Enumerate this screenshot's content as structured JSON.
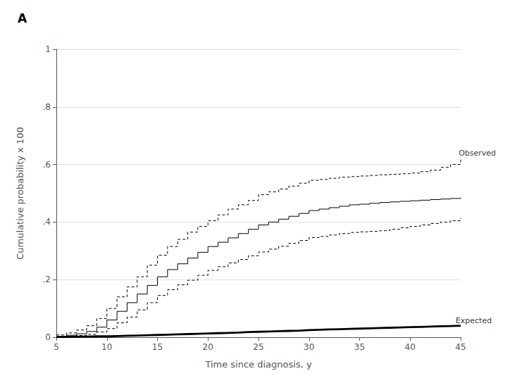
{
  "chart_data": {
    "type": "line",
    "title": "A",
    "xlabel": "Time since diagnosis, y",
    "ylabel": "Cumulative probability x 100",
    "x": [
      5,
      6,
      7,
      8,
      9,
      10,
      11,
      12,
      13,
      14,
      15,
      16,
      17,
      18,
      19,
      20,
      21,
      22,
      23,
      24,
      25,
      26,
      27,
      28,
      29,
      30,
      31,
      32,
      33,
      34,
      35,
      36,
      37,
      38,
      39,
      40,
      41,
      42,
      43,
      44,
      45
    ],
    "xlim": [
      5,
      45
    ],
    "ylim": [
      0,
      1.0
    ],
    "xticks": [
      5,
      10,
      15,
      20,
      25,
      30,
      35,
      40,
      45
    ],
    "yticks": [
      0,
      {
        "value": 0.2,
        "label": ".2"
      },
      {
        "value": 0.4,
        "label": ".4"
      },
      {
        "value": 0.6,
        "label": ".6"
      },
      {
        "value": 0.8,
        "label": ".8"
      },
      1
    ],
    "grid": true,
    "series": [
      {
        "type": "step",
        "color": "#000000",
        "line_style": "solid",
        "values": [
          0.003,
          0.007,
          0.012,
          0.02,
          0.035,
          0.06,
          0.09,
          0.12,
          0.15,
          0.18,
          0.21,
          0.235,
          0.255,
          0.275,
          0.295,
          0.315,
          0.33,
          0.345,
          0.36,
          0.375,
          0.39,
          0.4,
          0.41,
          0.42,
          0.43,
          0.44,
          0.445,
          0.45,
          0.455,
          0.46,
          0.462,
          0.465,
          0.468,
          0.47,
          0.472,
          0.474,
          0.476,
          0.478,
          0.48,
          0.482,
          0.485
        ]
      },
      {
        "type": "step",
        "color": "#000000",
        "line_style": "dashed",
        "values": [
          0.008,
          0.015,
          0.025,
          0.04,
          0.065,
          0.1,
          0.14,
          0.175,
          0.21,
          0.25,
          0.285,
          0.315,
          0.34,
          0.365,
          0.385,
          0.405,
          0.425,
          0.445,
          0.46,
          0.475,
          0.495,
          0.505,
          0.515,
          0.525,
          0.535,
          0.545,
          0.548,
          0.552,
          0.556,
          0.558,
          0.56,
          0.562,
          0.564,
          0.566,
          0.568,
          0.57,
          0.575,
          0.58,
          0.59,
          0.6,
          0.62
        ]
      },
      {
        "type": "step",
        "color": "#000000",
        "line_style": "dashed",
        "values": [
          0.001,
          0.003,
          0.006,
          0.01,
          0.018,
          0.03,
          0.05,
          0.07,
          0.095,
          0.12,
          0.145,
          0.165,
          0.182,
          0.198,
          0.215,
          0.232,
          0.245,
          0.258,
          0.27,
          0.283,
          0.296,
          0.306,
          0.316,
          0.326,
          0.336,
          0.346,
          0.35,
          0.355,
          0.36,
          0.364,
          0.366,
          0.368,
          0.37,
          0.375,
          0.38,
          0.385,
          0.39,
          0.395,
          0.4,
          0.405,
          0.415
        ]
      },
      {
        "type": "line",
        "color": "#000000",
        "line_style": "solid",
        "values": [
          0.001,
          0.001,
          0.002,
          0.002,
          0.003,
          0.003,
          0.004,
          0.005,
          0.006,
          0.007,
          0.008,
          0.009,
          0.01,
          0.011,
          0.012,
          0.013,
          0.014,
          0.015,
          0.016,
          0.018,
          0.019,
          0.02,
          0.021,
          0.022,
          0.023,
          0.025,
          0.026,
          0.027,
          0.028,
          0.029,
          0.03,
          0.031,
          0.032,
          0.033,
          0.034,
          0.035,
          0.036,
          0.037,
          0.038,
          0.039,
          0.04
        ]
      }
    ],
    "annotations": [
      {
        "text": "Observed",
        "x": 44.8,
        "y": 0.62
      },
      {
        "text": "Expected",
        "x": 44.5,
        "y": 0.04
      }
    ]
  }
}
